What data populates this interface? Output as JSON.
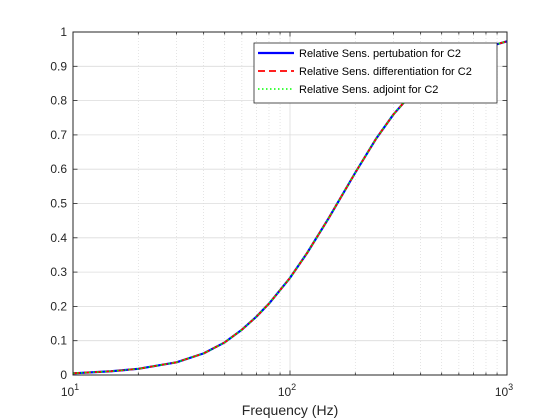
{
  "chart_data": {
    "type": "line",
    "xscale": "log",
    "xlim": [
      10,
      1000
    ],
    "ylim": [
      0,
      1
    ],
    "xlabel": "Frequency (Hz)",
    "ylabel": "",
    "title": "",
    "grid": true,
    "minor_grid": true,
    "legend_position": "top-right",
    "x_ticks": [
      {
        "value": 10,
        "base": "10",
        "exp": "1"
      },
      {
        "value": 100,
        "base": "10",
        "exp": "2"
      },
      {
        "value": 1000,
        "base": "10",
        "exp": "3"
      }
    ],
    "y_ticks": [
      {
        "value": 0,
        "label": "0"
      },
      {
        "value": 0.1,
        "label": "0.1"
      },
      {
        "value": 0.2,
        "label": "0.2"
      },
      {
        "value": 0.3,
        "label": "0.3"
      },
      {
        "value": 0.4,
        "label": "0.4"
      },
      {
        "value": 0.5,
        "label": "0.5"
      },
      {
        "value": 0.6,
        "label": "0.6"
      },
      {
        "value": 0.7,
        "label": "0.7"
      },
      {
        "value": 0.8,
        "label": "0.8"
      },
      {
        "value": 0.9,
        "label": "0.9"
      },
      {
        "value": 1,
        "label": "1"
      }
    ],
    "x": [
      10,
      15,
      20,
      30,
      40,
      50,
      60,
      70,
      80,
      100,
      120,
      150,
      200,
      250,
      300,
      400,
      500,
      600,
      800,
      1000
    ],
    "series": [
      {
        "name": "Relative Sens. pertubation  for C2",
        "color": "#0000ff",
        "style": "solid",
        "y": [
          0.005,
          0.011,
          0.018,
          0.037,
          0.063,
          0.095,
          0.132,
          0.17,
          0.208,
          0.283,
          0.356,
          0.455,
          0.59,
          0.69,
          0.76,
          0.85,
          0.897,
          0.925,
          0.955,
          0.973
        ]
      },
      {
        "name": "Relative Sens. differentiation  for C2",
        "color": "#ff0000",
        "style": "dashed",
        "y": [
          0.005,
          0.011,
          0.018,
          0.037,
          0.063,
          0.095,
          0.132,
          0.17,
          0.208,
          0.283,
          0.356,
          0.455,
          0.59,
          0.69,
          0.76,
          0.85,
          0.897,
          0.925,
          0.955,
          0.973
        ]
      },
      {
        "name": "Relative Sens. adjoint  for C2",
        "color": "#00ff00",
        "style": "dotted",
        "y": [
          0.005,
          0.011,
          0.018,
          0.037,
          0.063,
          0.095,
          0.132,
          0.17,
          0.208,
          0.283,
          0.356,
          0.455,
          0.59,
          0.69,
          0.76,
          0.85,
          0.897,
          0.925,
          0.955,
          0.973
        ]
      }
    ]
  }
}
